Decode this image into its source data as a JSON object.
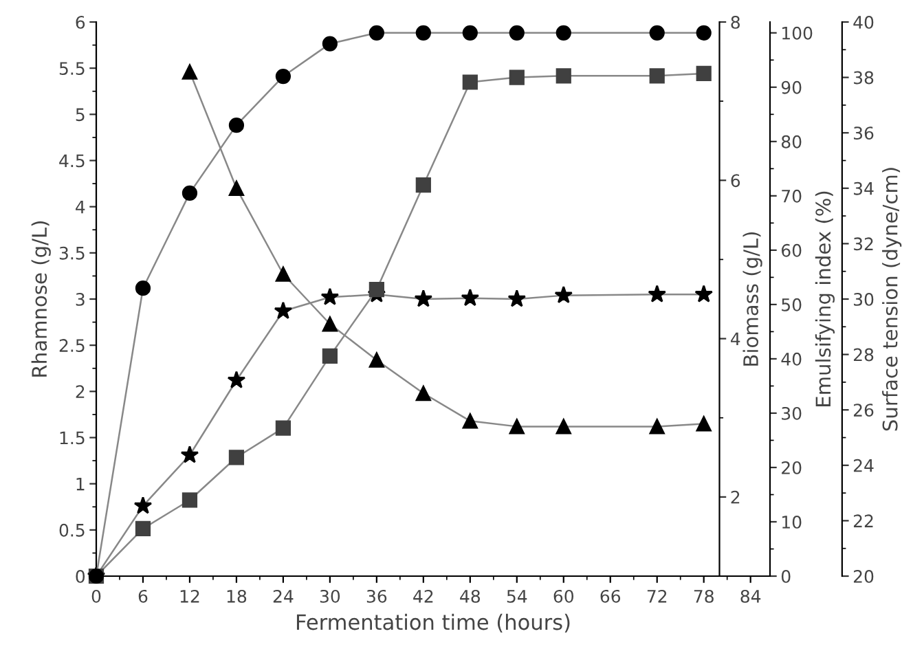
{
  "chart_data": [
    {
      "type": "line",
      "xlabel": "Fermentation time (hours)",
      "ylabel": "Rhamnose (g/L)",
      "y2label": "Biomass (g/L)",
      "y3label": "Emulsifying index (%)",
      "xlim": [
        0,
        86.5
      ],
      "xticks": [
        0,
        6,
        12,
        18,
        24,
        30,
        36,
        42,
        48,
        54,
        60,
        66,
        72,
        78,
        84
      ],
      "ylim": [
        0,
        6
      ],
      "yticks": [
        0,
        0.5,
        1,
        1.5,
        2,
        2.5,
        3,
        3.5,
        4,
        4.5,
        5,
        5.5,
        6
      ],
      "y2lim": [
        1,
        8
      ],
      "y2ticks": [
        2,
        4,
        6,
        8
      ],
      "y3lim": [
        0,
        102
      ],
      "y3ticks": [
        0,
        10,
        20,
        30,
        40,
        50,
        60,
        70,
        80,
        90,
        100
      ],
      "line_style": "solid",
      "series": [
        {
          "marker": "star",
          "color": "#000000",
          "x": [
            0,
            6,
            12,
            18,
            24,
            30,
            36,
            42,
            48,
            54,
            60,
            72,
            78
          ],
          "values": [
            0,
            0.76,
            1.31,
            2.12,
            2.87,
            3.02,
            3.05,
            3.0,
            3.01,
            3.0,
            3.04,
            3.05,
            3.05
          ]
        },
        {
          "axis": "y2",
          "marker": "square",
          "color": "#404040",
          "x": [
            0,
            6,
            12,
            18,
            24,
            30,
            36,
            42,
            48,
            54,
            60,
            72,
            78
          ],
          "values": [
            1.0,
            1.6,
            1.96,
            2.5,
            2.87,
            3.78,
            4.62,
            5.94,
            7.24,
            7.3,
            7.32,
            7.32,
            7.35
          ]
        },
        {
          "axis": "y3",
          "marker": "circle",
          "color": "#000000",
          "x": [
            0,
            6,
            12,
            18,
            24,
            30,
            36,
            42,
            48,
            54,
            60,
            72,
            78
          ],
          "values": [
            0,
            53,
            70.5,
            83,
            92,
            98,
            100,
            100,
            100,
            100,
            100,
            100,
            100
          ]
        }
      ]
    },
    {
      "type": "line",
      "ylabel": "Surface tension (dyne/cm)",
      "xlim": [
        0,
        86.5
      ],
      "ylim": [
        20,
        40
      ],
      "yticks": [
        20,
        22,
        24,
        26,
        28,
        30,
        32,
        34,
        36,
        38,
        40
      ],
      "tick_labels": "y",
      "line_style": "solid",
      "series": [
        {
          "marker": "triangle",
          "color": "#000000",
          "x": [
            12,
            18,
            24,
            30,
            36,
            42,
            48,
            54,
            60,
            72,
            78
          ],
          "values": [
            38.2,
            34.0,
            30.9,
            29.1,
            27.8,
            26.6,
            25.6,
            25.4,
            25.4,
            25.4,
            25.5
          ]
        }
      ]
    }
  ]
}
